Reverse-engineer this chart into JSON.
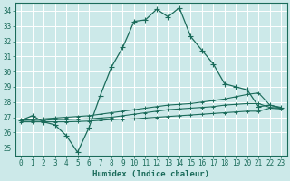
{
  "xlabel": "Humidex (Indice chaleur)",
  "bg_color": "#cce9e9",
  "grid_color": "#b0d8d8",
  "line_color": "#1a6b5a",
  "xlim": [
    -0.5,
    23.5
  ],
  "ylim": [
    24.5,
    34.5
  ],
  "yticks": [
    25,
    26,
    27,
    28,
    29,
    30,
    31,
    32,
    33,
    34
  ],
  "xticks": [
    0,
    1,
    2,
    3,
    4,
    5,
    6,
    7,
    8,
    9,
    10,
    11,
    12,
    13,
    14,
    15,
    16,
    17,
    18,
    19,
    20,
    21,
    22,
    23
  ],
  "series1_x": [
    0,
    1,
    2,
    3,
    4,
    5,
    6,
    7,
    8,
    9,
    10,
    11,
    12,
    13,
    14,
    15,
    16,
    17,
    18,
    19,
    20,
    21,
    22,
    23
  ],
  "series1_y": [
    26.8,
    27.1,
    26.7,
    26.5,
    25.8,
    24.7,
    26.3,
    28.4,
    30.3,
    31.6,
    33.3,
    33.4,
    34.1,
    33.6,
    34.2,
    32.3,
    31.4,
    30.5,
    29.2,
    29.0,
    28.8,
    27.7,
    27.8,
    27.6
  ],
  "series2_x": [
    0,
    1,
    2,
    3,
    4,
    5,
    6,
    7,
    8,
    9,
    10,
    11,
    12,
    13,
    14,
    15,
    16,
    17,
    18,
    19,
    20,
    21,
    22,
    23
  ],
  "series2_y": [
    26.8,
    26.85,
    26.9,
    26.95,
    27.0,
    27.05,
    27.1,
    27.2,
    27.3,
    27.4,
    27.5,
    27.6,
    27.7,
    27.8,
    27.85,
    27.9,
    28.0,
    28.1,
    28.2,
    28.35,
    28.5,
    28.6,
    27.8,
    27.65
  ],
  "series3_x": [
    0,
    1,
    2,
    3,
    4,
    5,
    6,
    7,
    8,
    9,
    10,
    11,
    12,
    13,
    14,
    15,
    16,
    17,
    18,
    19,
    20,
    21,
    22,
    23
  ],
  "series3_y": [
    26.8,
    26.8,
    26.8,
    26.85,
    26.85,
    26.88,
    26.9,
    26.95,
    27.0,
    27.1,
    27.2,
    27.3,
    27.4,
    27.5,
    27.55,
    27.6,
    27.65,
    27.7,
    27.8,
    27.85,
    27.9,
    27.9,
    27.65,
    27.6
  ],
  "series4_x": [
    0,
    1,
    2,
    3,
    4,
    5,
    6,
    7,
    8,
    9,
    10,
    11,
    12,
    13,
    14,
    15,
    16,
    17,
    18,
    19,
    20,
    21,
    22,
    23
  ],
  "series4_y": [
    26.7,
    26.7,
    26.7,
    26.7,
    26.7,
    26.72,
    26.75,
    26.8,
    26.85,
    26.88,
    26.9,
    26.95,
    27.0,
    27.05,
    27.1,
    27.15,
    27.2,
    27.25,
    27.3,
    27.35,
    27.4,
    27.4,
    27.6,
    27.55
  ]
}
